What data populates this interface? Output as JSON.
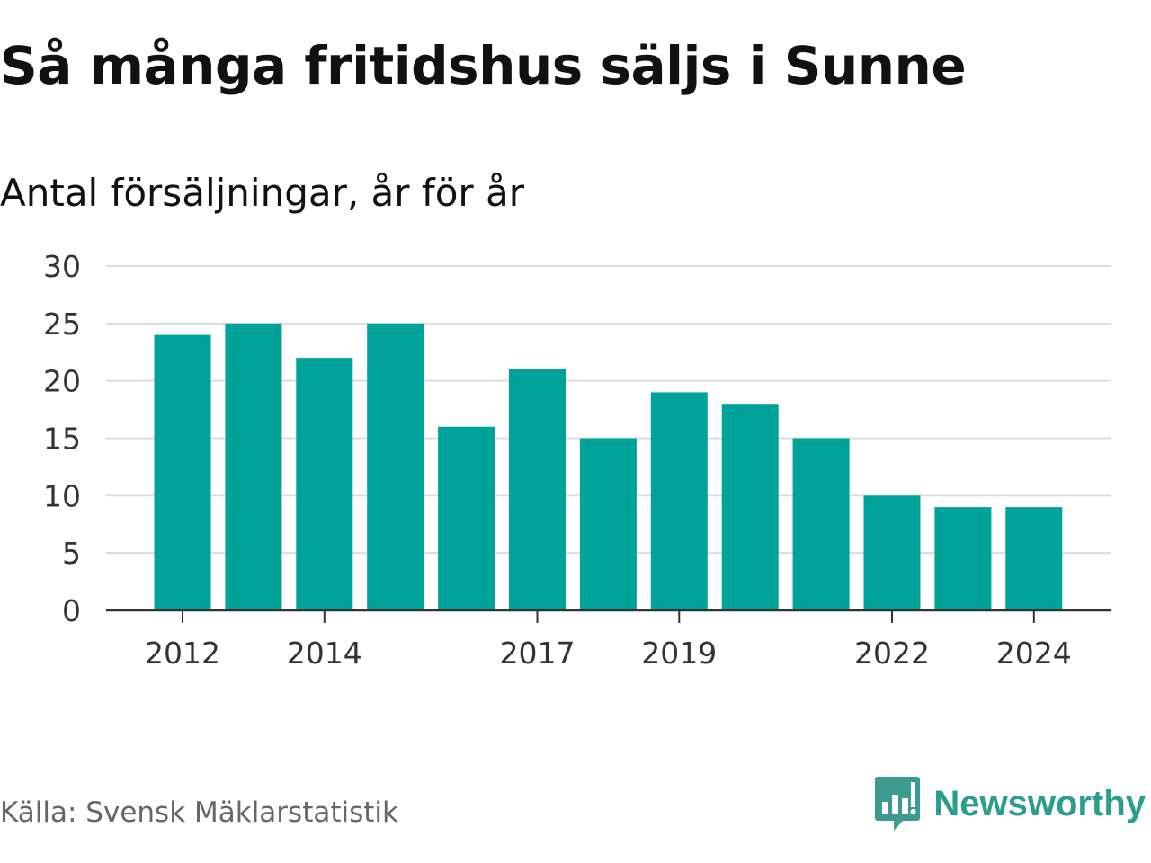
{
  "title": "Så många fritidshus säljs i Sunne",
  "subtitle": "Antal försäljningar, år för år",
  "source": "Källa: Svensk Mäklarstatistik",
  "brand": {
    "name": "Newsworthy",
    "icon": "newsworthy-logo-icon",
    "color": "#2a9d8f"
  },
  "chart_data": {
    "type": "bar",
    "categories": [
      "2012",
      "2013",
      "2014",
      "2015",
      "2016",
      "2017",
      "2018",
      "2019",
      "2020",
      "2021",
      "2022",
      "2023",
      "2024"
    ],
    "values": [
      24,
      25,
      22,
      25,
      16,
      21,
      15,
      19,
      18,
      15,
      10,
      9,
      9
    ],
    "x_tick_labels": [
      "2012",
      "2014",
      "2017",
      "2019",
      "2022",
      "2024"
    ],
    "y_ticks": [
      0,
      5,
      10,
      15,
      20,
      25,
      30
    ],
    "ylim": [
      0,
      30
    ],
    "bar_color": "#00a39a",
    "grid": true,
    "xlabel": "",
    "ylabel": ""
  }
}
